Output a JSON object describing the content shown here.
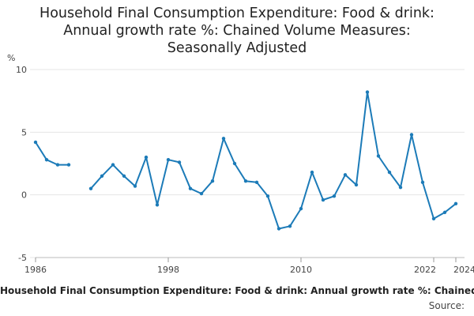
{
  "chart_data": {
    "type": "line",
    "title_lines": [
      "Household Final Consumption Expenditure: Food & drink:",
      "Annual growth rate %: Chained Volume Measures:",
      "Seasonally Adjusted"
    ],
    "ylabel": "%",
    "ylim": [
      -5,
      10
    ],
    "yticks": [
      -5,
      0,
      5,
      10
    ],
    "xlim": [
      1986,
      2024
    ],
    "xticks": [
      1986,
      1998,
      2010,
      2022,
      2024
    ],
    "grid": true,
    "color": "#1c7bb8",
    "segments": [
      {
        "x": [
          1986,
          1987,
          1988,
          1989
        ],
        "y": [
          4.2,
          2.8,
          2.4,
          2.4
        ]
      },
      {
        "x": [
          1991,
          1992,
          1993,
          1994,
          1995,
          1996,
          1997,
          1998,
          1999,
          2000,
          2001,
          2002,
          2003,
          2004,
          2005,
          2006,
          2007,
          2008,
          2009,
          2010,
          2011,
          2012,
          2013,
          2014,
          2015,
          2016,
          2017,
          2018,
          2019,
          2020,
          2021,
          2022,
          2023,
          2024
        ],
        "y": [
          0.5,
          1.5,
          2.4,
          1.5,
          0.7,
          3.0,
          -0.8,
          2.8,
          2.6,
          0.5,
          0.1,
          1.1,
          4.5,
          2.5,
          1.1,
          1.0,
          -0.1,
          -2.7,
          -2.5,
          -1.1,
          1.8,
          -0.4,
          -0.1,
          1.6,
          0.8,
          8.2,
          3.1,
          1.8,
          0.6,
          4.8,
          1.0,
          -1.9,
          -1.4,
          -0.7
        ]
      }
    ],
    "footer": "Household Final Consumption Expenditure: Food & drink: Annual growth rate %: Chained Volume Measures: Seasonally Adjusted",
    "source": "Source:"
  }
}
